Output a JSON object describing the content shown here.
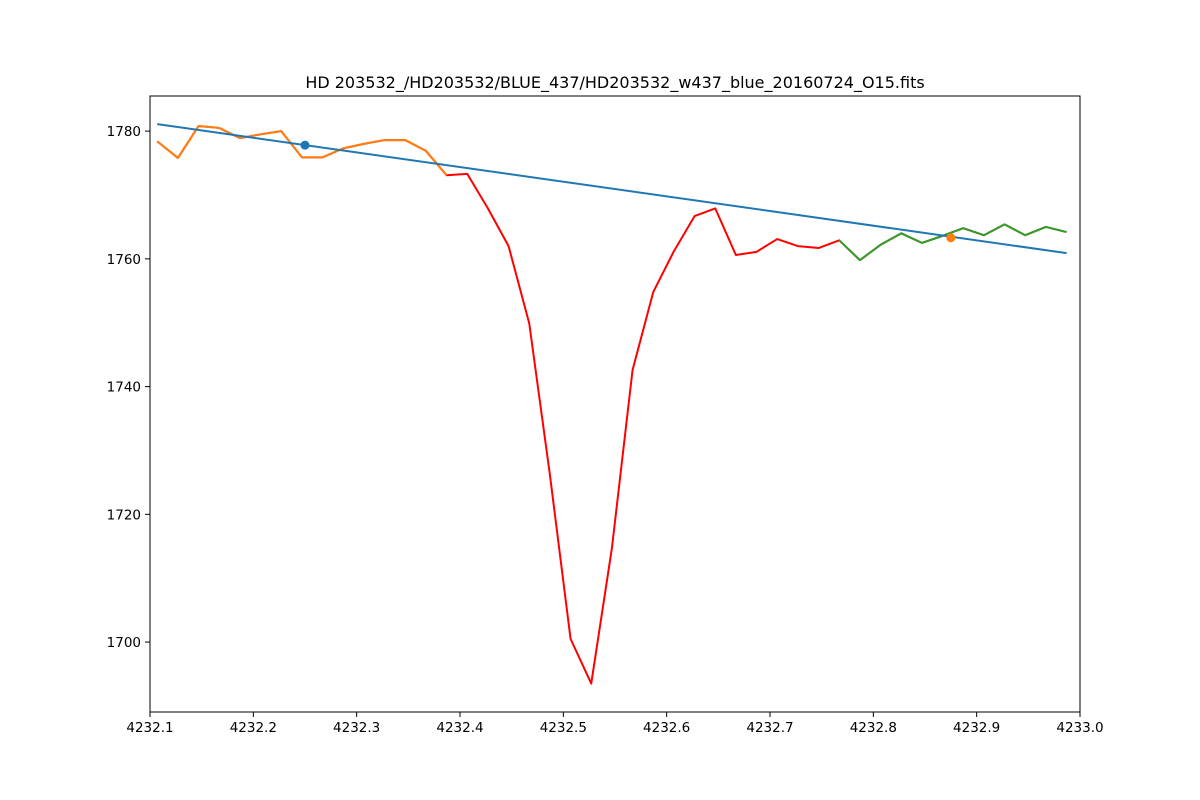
{
  "chart_data": {
    "type": "line",
    "title": "HD 203532_/HD203532/BLUE_437/HD203532_w437_blue_20160724_O15.fits",
    "xlim": [
      4232.1,
      4233.0
    ],
    "ylim": [
      1689.05,
      1785.5
    ],
    "xticks": [
      4232.1,
      4232.2,
      4232.3,
      4232.4,
      4232.5,
      4232.6,
      4232.7,
      4232.8,
      4232.9,
      {
        "value": 4233.0,
        "label": "4233.0"
      }
    ],
    "yticks": [
      1700,
      1720,
      1740,
      1760,
      1780
    ],
    "grid": false,
    "series": [
      {
        "style": "line",
        "color": "#ff0000",
        "x": [
          4232.107,
          4232.127,
          4232.147,
          4232.167,
          4232.187,
          4232.207,
          4232.227,
          4232.247,
          4232.267,
          4232.287,
          4232.307,
          4232.327,
          4232.347,
          4232.367,
          4232.387,
          4232.407,
          4232.427,
          4232.447,
          4232.467,
          4232.487,
          4232.507,
          4232.527,
          4232.547,
          4232.567,
          4232.587,
          4232.607,
          4232.627,
          4232.647,
          4232.667,
          4232.687,
          4232.707,
          4232.727,
          4232.747,
          4232.767,
          4232.787,
          4232.807,
          4232.827,
          4232.847,
          4232.867,
          4232.887,
          4232.907,
          4232.927,
          4232.947,
          4232.967,
          4232.987
        ],
        "values": [
          1778.4,
          1775.8,
          1780.8,
          1780.5,
          1778.9,
          1779.5,
          1780.0,
          1775.9,
          1775.9,
          1777.3,
          1778.0,
          1778.6,
          1778.6,
          1776.9,
          1773.1,
          1773.3,
          1767.9,
          1762.0,
          1749.9,
          1726.2,
          1700.5,
          1693.5,
          1714.7,
          1742.6,
          1754.8,
          1761.2,
          1766.7,
          1767.9,
          1760.6,
          1761.1,
          1763.1,
          1762.0,
          1761.7,
          1762.9,
          1759.8,
          1762.2,
          1764.0,
          1762.5,
          1763.6,
          1764.8,
          1763.7,
          1765.4,
          1763.7,
          1765.0,
          1764.2
        ]
      },
      {
        "style": "line",
        "color": "#ff7f0e",
        "x": [
          4232.107,
          4232.127,
          4232.147,
          4232.167,
          4232.187,
          4232.207,
          4232.227,
          4232.247,
          4232.267,
          4232.287,
          4232.307,
          4232.327,
          4232.347,
          4232.367,
          4232.387
        ],
        "values": [
          1778.4,
          1775.8,
          1780.8,
          1780.5,
          1778.9,
          1779.5,
          1780.0,
          1775.9,
          1775.9,
          1777.3,
          1778.0,
          1778.6,
          1778.6,
          1776.9,
          1773.1
        ]
      },
      {
        "style": "line",
        "color": "#2ca02c",
        "x": [
          4232.767,
          4232.787,
          4232.807,
          4232.827,
          4232.847,
          4232.867,
          4232.887,
          4232.907,
          4232.927,
          4232.947,
          4232.967,
          4232.987
        ],
        "values": [
          1762.9,
          1759.8,
          1762.2,
          1764.0,
          1762.5,
          1763.6,
          1764.8,
          1763.7,
          1765.4,
          1763.7,
          1765.0,
          1764.2
        ]
      },
      {
        "style": "line",
        "color": "#1f77b4",
        "x": [
          4232.107,
          4232.987
        ],
        "values": [
          1781.1,
          1760.9
        ]
      },
      {
        "style": "point",
        "color": "#1f77b4",
        "x": [
          4232.25
        ],
        "values": [
          1777.8
        ]
      },
      {
        "style": "point",
        "color": "#ff7f0e",
        "x": [
          4232.875
        ],
        "values": [
          1763.3
        ]
      }
    ]
  }
}
